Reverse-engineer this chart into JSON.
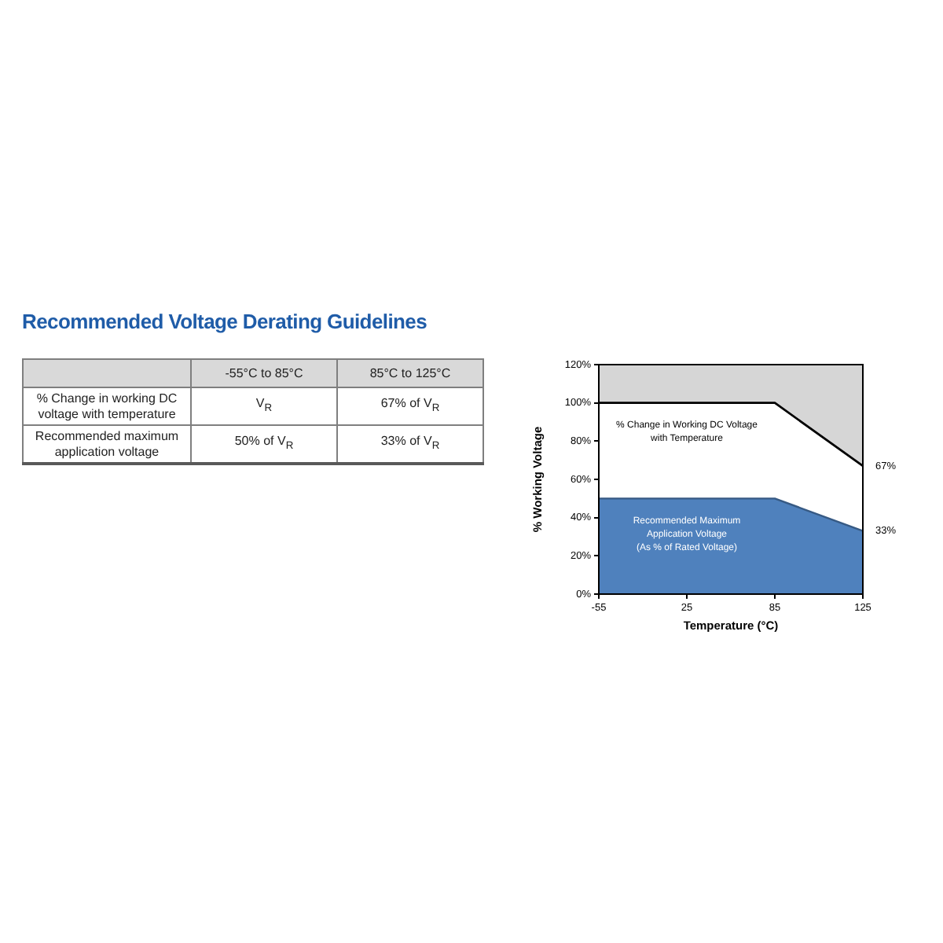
{
  "chart_data": [
    {
      "type": "other",
      "title": "Recommended Voltage Derating Guidelines",
      "annotations": [
        "-55°C to 85°C",
        "85°C to 125°C",
        "% Change in working DC voltage with temperature",
        "V$_{R}$",
        "67% of V$_{R}$",
        "Recommended maximum application voltage",
        "50% of V$_{R}$",
        "33% of V$_{R}$"
      ]
    },
    {
      "type": "area",
      "categories": [
        "-55",
        "25",
        "85",
        "125"
      ],
      "xlabel": "Temperature (°C)",
      "ylabel": "% Working Voltage",
      "ylim": [
        0,
        120
      ],
      "yticks": [
        {
          "value": 0,
          "label": "0%"
        },
        {
          "value": 20,
          "label": "20%"
        },
        {
          "value": 40,
          "label": "40%"
        },
        {
          "value": 60,
          "label": "60%"
        },
        {
          "value": 80,
          "label": "80%"
        },
        {
          "value": 100,
          "label": "100%"
        },
        {
          "value": 120,
          "label": "120%"
        }
      ],
      "series": [
        {
          "name": "Recommended Maximum\nApplication Voltage\n(As % of Rated Voltage)",
          "type": "area",
          "color": "#4f81bd",
          "values": [
            50,
            50,
            50,
            33
          ],
          "value_labels": [
            null,
            null,
            null,
            "33%"
          ]
        },
        {
          "name": "% Change in Working DC Voltage\nwith Temperature",
          "type": "line",
          "color": "#000000",
          "values": [
            100,
            100,
            100,
            67
          ],
          "lower": [
            100,
            100,
            100,
            67
          ],
          "upper": [
            120,
            120,
            120,
            120
          ],
          "value_labels": [
            null,
            null,
            null,
            "67%"
          ]
        }
      ]
    }
  ]
}
